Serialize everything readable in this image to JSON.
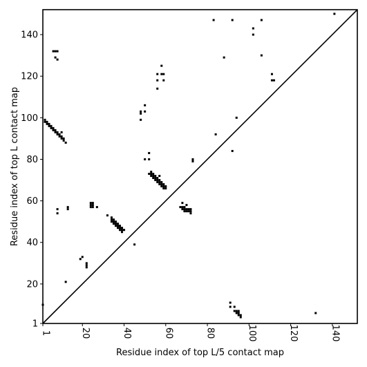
{
  "chart_data": {
    "type": "scatter",
    "title": "",
    "xlabel": "Residue index of top L/5 contact map",
    "ylabel": "Residue index of top L contact map",
    "xlim": [
      1,
      152
    ],
    "ylim": [
      1,
      152
    ],
    "x_ticks": [
      1,
      20,
      40,
      60,
      80,
      100,
      120,
      140
    ],
    "y_ticks": [
      1,
      20,
      40,
      60,
      80,
      100,
      120,
      140
    ],
    "diagonal": true,
    "marker": "square",
    "color": "#000000",
    "series": [
      {
        "name": "",
        "points": [
          [
            1,
            10
          ],
          [
            2,
            98
          ],
          [
            2,
            99
          ],
          [
            3,
            97
          ],
          [
            3,
            98
          ],
          [
            4,
            96
          ],
          [
            4,
            97
          ],
          [
            5,
            95
          ],
          [
            5,
            96
          ],
          [
            6,
            94
          ],
          [
            6,
            95
          ],
          [
            6,
            132
          ],
          [
            7,
            93
          ],
          [
            7,
            94
          ],
          [
            7,
            129
          ],
          [
            7,
            132
          ],
          [
            8,
            92
          ],
          [
            8,
            93
          ],
          [
            8,
            128
          ],
          [
            8,
            132
          ],
          [
            8,
            54
          ],
          [
            8,
            56
          ],
          [
            9,
            91
          ],
          [
            9,
            92
          ],
          [
            10,
            90
          ],
          [
            10,
            91
          ],
          [
            10,
            93
          ],
          [
            11,
            89
          ],
          [
            11,
            90
          ],
          [
            12,
            88
          ],
          [
            12,
            21
          ],
          [
            13,
            56
          ],
          [
            13,
            57
          ],
          [
            19,
            32
          ],
          [
            20,
            33
          ],
          [
            22,
            28
          ],
          [
            22,
            29
          ],
          [
            22,
            30
          ],
          [
            24,
            57
          ],
          [
            24,
            58
          ],
          [
            24,
            59
          ],
          [
            25,
            57
          ],
          [
            25,
            58
          ],
          [
            25,
            59
          ],
          [
            27,
            57
          ],
          [
            32,
            53
          ],
          [
            34,
            50
          ],
          [
            34,
            51
          ],
          [
            34,
            52
          ],
          [
            35,
            49
          ],
          [
            35,
            50
          ],
          [
            35,
            51
          ],
          [
            36,
            48
          ],
          [
            36,
            49
          ],
          [
            36,
            50
          ],
          [
            37,
            47
          ],
          [
            37,
            48
          ],
          [
            37,
            49
          ],
          [
            38,
            46
          ],
          [
            38,
            47
          ],
          [
            38,
            48
          ],
          [
            39,
            45
          ],
          [
            39,
            46
          ],
          [
            39,
            47
          ],
          [
            40,
            46
          ],
          [
            45,
            39
          ],
          [
            48,
            99
          ],
          [
            48,
            102
          ],
          [
            48,
            103
          ],
          [
            50,
            103
          ],
          [
            50,
            106
          ],
          [
            50,
            80
          ],
          [
            52,
            73
          ],
          [
            52,
            80
          ],
          [
            52,
            83
          ],
          [
            53,
            72
          ],
          [
            53,
            73
          ],
          [
            53,
            74
          ],
          [
            54,
            71
          ],
          [
            54,
            72
          ],
          [
            54,
            73
          ],
          [
            55,
            70
          ],
          [
            55,
            71
          ],
          [
            55,
            72
          ],
          [
            56,
            69
          ],
          [
            56,
            70
          ],
          [
            56,
            71
          ],
          [
            56,
            114
          ],
          [
            56,
            118
          ],
          [
            56,
            121
          ],
          [
            57,
            68
          ],
          [
            57,
            69
          ],
          [
            57,
            70
          ],
          [
            57,
            72
          ],
          [
            58,
            67
          ],
          [
            58,
            68
          ],
          [
            58,
            69
          ],
          [
            58,
            125
          ],
          [
            59,
            66
          ],
          [
            59,
            67
          ],
          [
            59,
            68
          ],
          [
            59,
            118
          ],
          [
            59,
            121
          ],
          [
            60,
            66
          ],
          [
            60,
            67
          ],
          [
            58,
            121
          ],
          [
            67,
            57
          ],
          [
            68,
            56
          ],
          [
            68,
            57
          ],
          [
            68,
            59
          ],
          [
            69,
            55
          ],
          [
            69,
            56
          ],
          [
            69,
            57
          ],
          [
            70,
            55
          ],
          [
            70,
            56
          ],
          [
            70,
            58
          ],
          [
            71,
            55
          ],
          [
            71,
            56
          ],
          [
            72,
            54
          ],
          [
            72,
            55
          ],
          [
            72,
            56
          ],
          [
            73,
            79
          ],
          [
            73,
            80
          ],
          [
            83,
            147
          ],
          [
            84,
            92
          ],
          [
            88,
            129
          ],
          [
            91,
            11
          ],
          [
            91,
            9
          ],
          [
            92,
            147
          ],
          [
            92,
            84
          ],
          [
            93,
            9
          ],
          [
            93,
            7
          ],
          [
            94,
            6
          ],
          [
            94,
            7
          ],
          [
            94,
            100
          ],
          [
            95,
            5
          ],
          [
            95,
            6
          ],
          [
            95,
            7
          ],
          [
            96,
            4
          ],
          [
            96,
            5
          ],
          [
            102,
            140
          ],
          [
            102,
            143
          ],
          [
            106,
            130
          ],
          [
            106,
            147
          ],
          [
            111,
            118
          ],
          [
            111,
            121
          ],
          [
            112,
            118
          ],
          [
            132,
            6
          ],
          [
            141,
            150
          ]
        ]
      }
    ]
  }
}
